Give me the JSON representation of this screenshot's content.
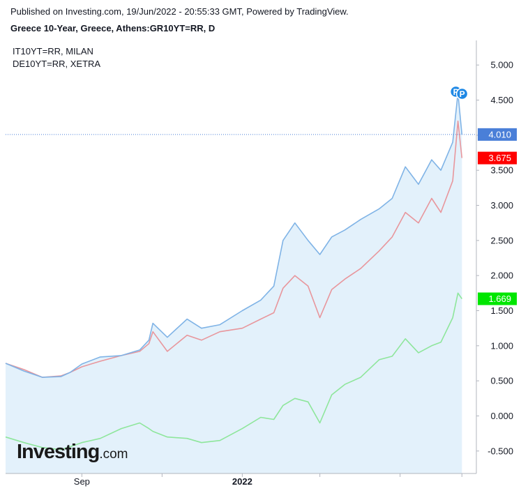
{
  "header": {
    "published": "Published on Investing.com, 19/Jun/2022 - 20:55:33 GMT, Powered by TradingView.",
    "title": "Greece 10-Year, Greece, Athens:GR10YT=RR, D"
  },
  "legend": {
    "italy": "IT10YT=RR, MILAN",
    "germany": "DE10YT=RR, XETRA"
  },
  "logo": {
    "main": "Investing",
    "suffix": ".com"
  },
  "markers": {
    "label": "P"
  },
  "price_tags": [
    {
      "series": "Greece 10-Year",
      "value": "4.010",
      "color": "#4a7fd8"
    },
    {
      "series": "IT10YT=RR",
      "value": "3.675",
      "color": "#ff0000"
    },
    {
      "series": "DE10YT=RR",
      "value": "1.669",
      "color": "#00e600"
    }
  ],
  "colors": {
    "greece_line": "#7fb3e6",
    "greece_fill": "#e3f1fb",
    "italy_line": "#e8969c",
    "germany_line": "#8ee69b",
    "marker": "#1e88e5"
  },
  "chart_data": {
    "type": "line",
    "x_ticks": [
      {
        "label": "Sep",
        "date": "2021-09-01",
        "bold": false
      },
      {
        "label": "",
        "date": "2021-11-01",
        "bold": false
      },
      {
        "label": "2022",
        "date": "2022-01-01",
        "bold": true
      },
      {
        "label": "",
        "date": "2022-03-01",
        "bold": false
      },
      {
        "label": "",
        "date": "2022-05-01",
        "bold": false
      },
      {
        "label": "",
        "date": "2022-06-17",
        "bold": false
      }
    ],
    "x_range": [
      "2021-07-05",
      "2022-06-28"
    ],
    "yticks": [
      "5.000",
      "4.500",
      "4.000",
      "3.500",
      "3.000",
      "2.500",
      "2.000",
      "1.500",
      "1.000",
      "0.500",
      "0.000",
      "-0.500"
    ],
    "ylim": [
      -0.82,
      5.35
    ],
    "current_level": 4.01,
    "series": [
      {
        "key": "greece",
        "x": [
          "2021-07-05",
          "2021-07-19",
          "2021-08-02",
          "2021-08-16",
          "2021-08-23",
          "2021-09-01",
          "2021-09-15",
          "2021-10-01",
          "2021-10-15",
          "2021-10-22",
          "2021-10-25",
          "2021-11-05",
          "2021-11-20",
          "2021-12-01",
          "2021-12-15",
          "2022-01-01",
          "2022-01-15",
          "2022-01-25",
          "2022-02-01",
          "2022-02-10",
          "2022-02-20",
          "2022-03-01",
          "2022-03-10",
          "2022-03-20",
          "2022-04-01",
          "2022-04-15",
          "2022-04-25",
          "2022-05-05",
          "2022-05-15",
          "2022-05-25",
          "2022-06-01",
          "2022-06-10",
          "2022-06-14",
          "2022-06-17"
        ],
        "values": [
          0.75,
          0.64,
          0.55,
          0.56,
          0.62,
          0.74,
          0.84,
          0.86,
          0.94,
          1.08,
          1.32,
          1.12,
          1.38,
          1.25,
          1.3,
          1.5,
          1.65,
          1.85,
          2.5,
          2.75,
          2.5,
          2.3,
          2.55,
          2.65,
          2.8,
          2.95,
          3.1,
          3.55,
          3.3,
          3.65,
          3.5,
          3.9,
          4.6,
          4.01
        ]
      },
      {
        "key": "italy",
        "x": [
          "2021-07-05",
          "2021-07-19",
          "2021-08-02",
          "2021-08-16",
          "2021-08-23",
          "2021-09-01",
          "2021-09-15",
          "2021-10-01",
          "2021-10-15",
          "2021-10-22",
          "2021-10-25",
          "2021-11-05",
          "2021-11-20",
          "2021-12-01",
          "2021-12-15",
          "2022-01-01",
          "2022-01-15",
          "2022-01-25",
          "2022-02-01",
          "2022-02-10",
          "2022-02-20",
          "2022-03-01",
          "2022-03-10",
          "2022-03-20",
          "2022-04-01",
          "2022-04-15",
          "2022-04-25",
          "2022-05-05",
          "2022-05-15",
          "2022-05-25",
          "2022-06-01",
          "2022-06-10",
          "2022-06-14",
          "2022-06-17"
        ],
        "values": [
          0.75,
          0.66,
          0.55,
          0.57,
          0.62,
          0.7,
          0.78,
          0.86,
          0.92,
          1.03,
          1.2,
          0.92,
          1.15,
          1.08,
          1.2,
          1.25,
          1.38,
          1.47,
          1.82,
          2.0,
          1.85,
          1.4,
          1.8,
          1.95,
          2.1,
          2.35,
          2.55,
          2.9,
          2.75,
          3.1,
          2.9,
          3.35,
          4.2,
          3.675
        ]
      },
      {
        "key": "germany",
        "x": [
          "2021-07-05",
          "2021-07-19",
          "2021-08-02",
          "2021-08-16",
          "2021-08-23",
          "2021-09-01",
          "2021-09-15",
          "2021-10-01",
          "2021-10-15",
          "2021-10-22",
          "2021-10-25",
          "2021-11-05",
          "2021-11-20",
          "2021-12-01",
          "2021-12-15",
          "2022-01-01",
          "2022-01-15",
          "2022-01-25",
          "2022-02-01",
          "2022-02-10",
          "2022-02-20",
          "2022-03-01",
          "2022-03-10",
          "2022-03-20",
          "2022-04-01",
          "2022-04-15",
          "2022-04-25",
          "2022-05-05",
          "2022-05-15",
          "2022-05-25",
          "2022-06-01",
          "2022-06-10",
          "2022-06-14",
          "2022-06-17"
        ],
        "values": [
          -0.3,
          -0.38,
          -0.45,
          -0.48,
          -0.44,
          -0.38,
          -0.32,
          -0.18,
          -0.1,
          -0.18,
          -0.22,
          -0.3,
          -0.32,
          -0.38,
          -0.35,
          -0.18,
          -0.02,
          -0.05,
          0.15,
          0.25,
          0.2,
          -0.1,
          0.3,
          0.45,
          0.55,
          0.8,
          0.85,
          1.1,
          0.9,
          1.0,
          1.05,
          1.4,
          1.75,
          1.669
        ]
      }
    ]
  }
}
